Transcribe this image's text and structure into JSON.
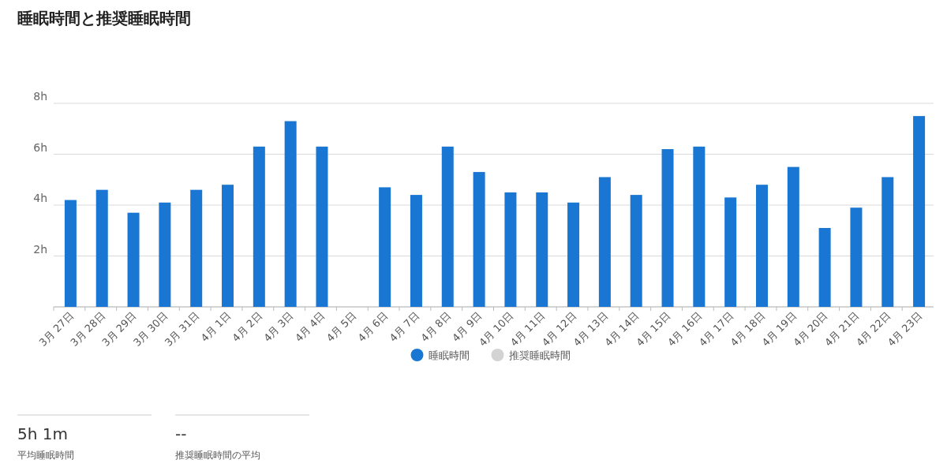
{
  "chart_data": {
    "type": "bar",
    "title": "睡眠時間と推奨睡眠時間",
    "categories": [
      "3月 27日",
      "3月 28日",
      "3月 29日",
      "3月 30日",
      "3月 31日",
      "4月 1日",
      "4月 2日",
      "4月 3日",
      "4月 4日",
      "4月 5日",
      "4月 6日",
      "4月 7日",
      "4月 8日",
      "4月 9日",
      "4月 10日",
      "4月 11日",
      "4月 12日",
      "4月 13日",
      "4月 14日",
      "4月 15日",
      "4月 16日",
      "4月 17日",
      "4月 18日",
      "4月 19日",
      "4月 20日",
      "4月 21日",
      "4月 22日",
      "4月 23日"
    ],
    "series": [
      {
        "name": "睡眠時間",
        "color": "#1976d2",
        "values": [
          4.2,
          4.6,
          3.7,
          4.1,
          4.6,
          4.8,
          6.3,
          7.3,
          6.3,
          null,
          4.7,
          4.4,
          6.3,
          5.3,
          4.5,
          4.5,
          4.1,
          5.1,
          4.4,
          6.2,
          6.3,
          4.3,
          4.8,
          5.5,
          3.1,
          3.9,
          5.1,
          7.5
        ]
      },
      {
        "name": "推奨睡眠時間",
        "color": "#d3d3d3",
        "values": [
          null,
          null,
          null,
          null,
          null,
          null,
          null,
          null,
          null,
          null,
          null,
          null,
          null,
          null,
          null,
          null,
          null,
          null,
          null,
          null,
          null,
          null,
          null,
          null,
          null,
          null,
          null,
          null
        ]
      }
    ],
    "ylim": [
      0,
      8
    ],
    "yticks": [
      {
        "value": 0,
        "label": null
      },
      {
        "value": 2,
        "label": "2h"
      },
      {
        "value": 4,
        "label": "4h"
      },
      {
        "value": 6,
        "label": "6h"
      },
      {
        "value": 8,
        "label": "8h"
      }
    ],
    "grid": "y",
    "legend": "bottom",
    "annotations": [
      "5h 1m",
      "平均睡眠時間",
      "--",
      "推奨睡眠時間の平均"
    ]
  }
}
